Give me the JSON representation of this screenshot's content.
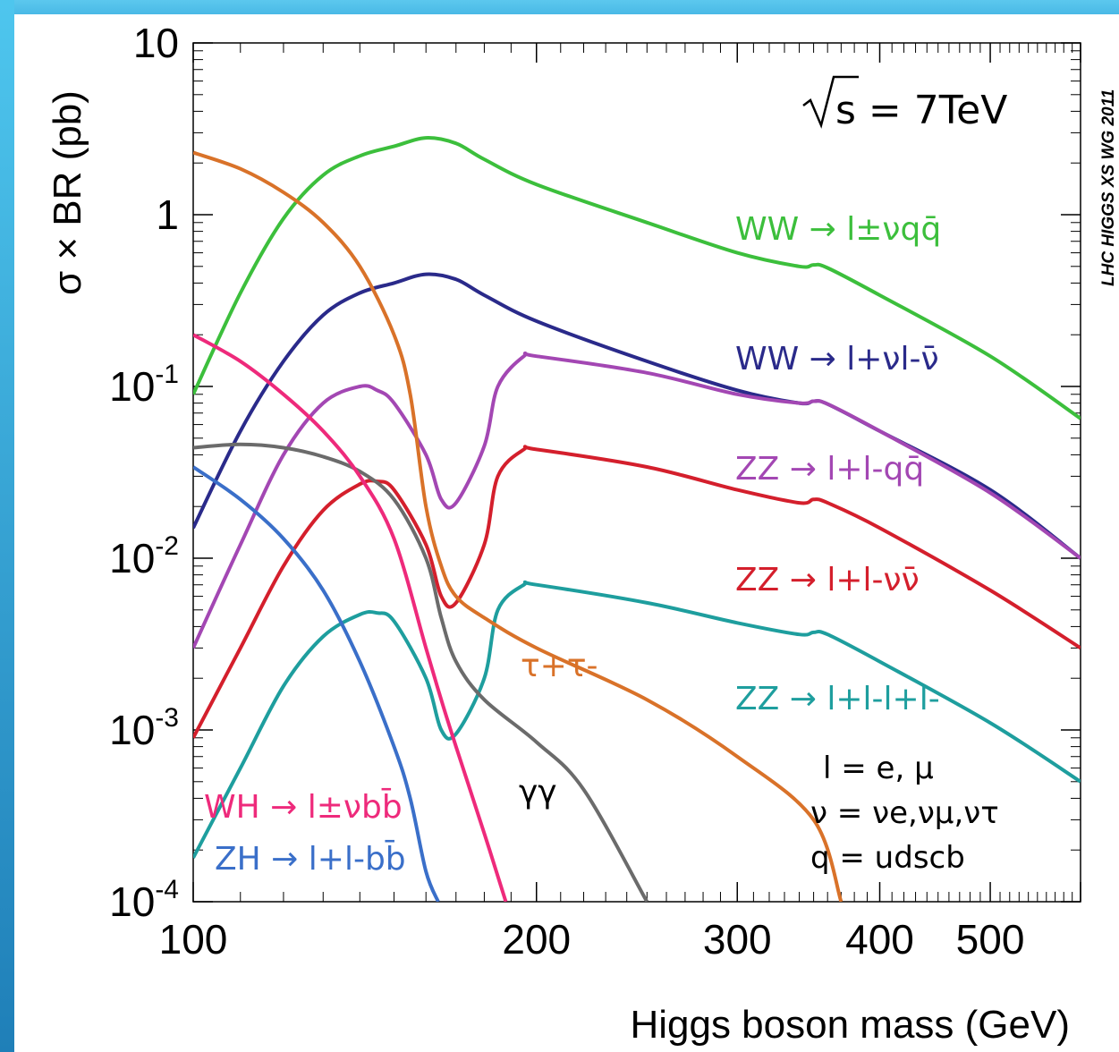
{
  "chart_data": {
    "type": "line",
    "x_scale": "log",
    "y_scale": "log",
    "xlim": [
      100,
      600
    ],
    "ylim": [
      0.0001,
      10
    ],
    "xlabel": "Higgs boson mass (GeV)",
    "ylabel": "σ × BR (pb)",
    "x_ticks": [
      {
        "value": 100,
        "label": "100"
      },
      {
        "value": 200,
        "label": "200"
      },
      {
        "value": 300,
        "label": "300"
      },
      {
        "value": 400,
        "label": "400"
      },
      {
        "value": 500,
        "label": "500"
      }
    ],
    "y_ticks": [
      {
        "value": 10,
        "base": "10",
        "exp": ""
      },
      {
        "value": 1,
        "base": "1",
        "exp": ""
      },
      {
        "value": 0.1,
        "base": "10",
        "exp": "-1"
      },
      {
        "value": 0.01,
        "base": "10",
        "exp": "-2"
      },
      {
        "value": 0.001,
        "base": "10",
        "exp": "-3"
      },
      {
        "value": 0.0001,
        "base": "10",
        "exp": "-4"
      }
    ],
    "energy_label": "s = 7TeV",
    "credit": "LHC HIGGS XS WG 2011",
    "legend_notes": [
      "l = e, μ",
      "ν = νe,νμ,ντ",
      "q = udscb"
    ],
    "series": [
      {
        "name": "WW → l±νqq̄",
        "color": "#3cbf3c",
        "points": [
          [
            100,
            0.09
          ],
          [
            110,
            0.35
          ],
          [
            120,
            0.95
          ],
          [
            130,
            1.7
          ],
          [
            140,
            2.2
          ],
          [
            150,
            2.5
          ],
          [
            160,
            2.8
          ],
          [
            170,
            2.6
          ],
          [
            180,
            2.1
          ],
          [
            200,
            1.5
          ],
          [
            250,
            0.9
          ],
          [
            300,
            0.6
          ],
          [
            340,
            0.5
          ],
          [
            350,
            0.51
          ],
          [
            360,
            0.49
          ],
          [
            400,
            0.34
          ],
          [
            500,
            0.15
          ],
          [
            600,
            0.065
          ]
        ]
      },
      {
        "name": "WW → l+νl-ν̄",
        "color": "#2a2a8a",
        "points": [
          [
            100,
            0.015
          ],
          [
            110,
            0.055
          ],
          [
            120,
            0.14
          ],
          [
            130,
            0.26
          ],
          [
            140,
            0.35
          ],
          [
            150,
            0.4
          ],
          [
            160,
            0.45
          ],
          [
            170,
            0.42
          ],
          [
            180,
            0.34
          ],
          [
            200,
            0.24
          ],
          [
            250,
            0.14
          ],
          [
            300,
            0.095
          ],
          [
            340,
            0.08
          ],
          [
            350,
            0.082
          ],
          [
            360,
            0.079
          ],
          [
            400,
            0.055
          ],
          [
            500,
            0.025
          ],
          [
            600,
            0.01
          ]
        ]
      },
      {
        "name": "ZZ → l+l-qq̄",
        "color": "#a347b3",
        "points": [
          [
            100,
            0.003
          ],
          [
            110,
            0.012
          ],
          [
            120,
            0.04
          ],
          [
            130,
            0.08
          ],
          [
            140,
            0.1
          ],
          [
            145,
            0.095
          ],
          [
            150,
            0.08
          ],
          [
            160,
            0.04
          ],
          [
            165,
            0.022
          ],
          [
            170,
            0.021
          ],
          [
            180,
            0.045
          ],
          [
            185,
            0.1
          ],
          [
            195,
            0.15
          ],
          [
            200,
            0.15
          ],
          [
            250,
            0.12
          ],
          [
            300,
            0.09
          ],
          [
            340,
            0.08
          ],
          [
            350,
            0.082
          ],
          [
            360,
            0.079
          ],
          [
            400,
            0.055
          ],
          [
            500,
            0.024
          ],
          [
            600,
            0.01
          ]
        ]
      },
      {
        "name": "ZZ → l+l-νν̄",
        "color": "#d41f2c",
        "points": [
          [
            100,
            0.0009
          ],
          [
            110,
            0.003
          ],
          [
            120,
            0.009
          ],
          [
            130,
            0.019
          ],
          [
            140,
            0.027
          ],
          [
            145,
            0.028
          ],
          [
            150,
            0.025
          ],
          [
            160,
            0.012
          ],
          [
            165,
            0.006
          ],
          [
            170,
            0.0055
          ],
          [
            180,
            0.012
          ],
          [
            185,
            0.03
          ],
          [
            195,
            0.043
          ],
          [
            200,
            0.043
          ],
          [
            250,
            0.034
          ],
          [
            300,
            0.025
          ],
          [
            340,
            0.021
          ],
          [
            350,
            0.022
          ],
          [
            360,
            0.021
          ],
          [
            400,
            0.015
          ],
          [
            500,
            0.0065
          ],
          [
            600,
            0.003
          ]
        ]
      },
      {
        "name": "ZZ → l+l-l+l-",
        "color": "#1e9e9e",
        "points": [
          [
            100,
            0.00018
          ],
          [
            110,
            0.0006
          ],
          [
            120,
            0.0018
          ],
          [
            130,
            0.0035
          ],
          [
            140,
            0.0047
          ],
          [
            145,
            0.0048
          ],
          [
            150,
            0.0043
          ],
          [
            160,
            0.002
          ],
          [
            165,
            0.001
          ],
          [
            170,
            0.00095
          ],
          [
            180,
            0.002
          ],
          [
            185,
            0.005
          ],
          [
            195,
            0.007
          ],
          [
            200,
            0.007
          ],
          [
            250,
            0.0055
          ],
          [
            300,
            0.0042
          ],
          [
            340,
            0.0036
          ],
          [
            350,
            0.0037
          ],
          [
            360,
            0.0036
          ],
          [
            400,
            0.0025
          ],
          [
            500,
            0.0011
          ],
          [
            600,
            0.0005
          ]
        ]
      },
      {
        "name": "τ+τ-",
        "color": "#d97229",
        "points": [
          [
            100,
            2.3
          ],
          [
            110,
            1.85
          ],
          [
            120,
            1.35
          ],
          [
            130,
            0.9
          ],
          [
            140,
            0.5
          ],
          [
            150,
            0.2
          ],
          [
            155,
            0.09
          ],
          [
            160,
            0.02
          ],
          [
            165,
            0.009
          ],
          [
            170,
            0.006
          ],
          [
            180,
            0.0045
          ],
          [
            200,
            0.003
          ],
          [
            250,
            0.0015
          ],
          [
            300,
            0.0007
          ],
          [
            350,
            0.0003
          ],
          [
            370,
            0.0001
          ]
        ]
      },
      {
        "name": "γγ",
        "color": "#6b6b6b",
        "points": [
          [
            100,
            0.044
          ],
          [
            110,
            0.046
          ],
          [
            120,
            0.044
          ],
          [
            130,
            0.039
          ],
          [
            140,
            0.032
          ],
          [
            150,
            0.022
          ],
          [
            160,
            0.01
          ],
          [
            165,
            0.0045
          ],
          [
            170,
            0.0025
          ],
          [
            180,
            0.0015
          ],
          [
            200,
            0.00085
          ],
          [
            220,
            0.00045
          ],
          [
            250,
            0.0001
          ]
        ]
      },
      {
        "name": "WH → l±νbb̄",
        "color": "#ee2a7b",
        "points": [
          [
            100,
            0.2
          ],
          [
            110,
            0.14
          ],
          [
            120,
            0.09
          ],
          [
            130,
            0.055
          ],
          [
            140,
            0.03
          ],
          [
            150,
            0.013
          ],
          [
            160,
            0.003
          ],
          [
            165,
            0.0015
          ],
          [
            170,
            0.0008
          ],
          [
            180,
            0.00025
          ],
          [
            188,
            0.0001
          ]
        ]
      },
      {
        "name": "ZH → l+l-bb̄",
        "color": "#3a6fc9",
        "points": [
          [
            100,
            0.034
          ],
          [
            110,
            0.022
          ],
          [
            120,
            0.013
          ],
          [
            130,
            0.0065
          ],
          [
            140,
            0.0025
          ],
          [
            150,
            0.0008
          ],
          [
            155,
            0.0004
          ],
          [
            160,
            0.00015
          ],
          [
            164,
            0.0001
          ]
        ]
      }
    ]
  }
}
